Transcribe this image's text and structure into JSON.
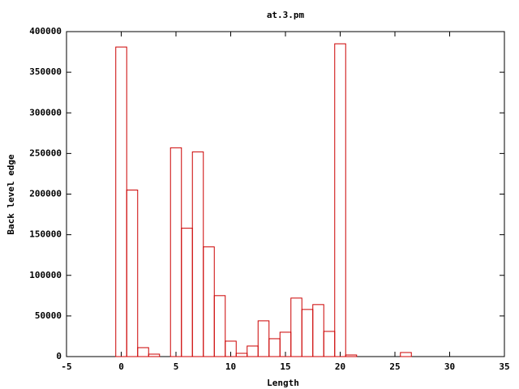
{
  "chart_data": {
    "type": "bar",
    "title": "at.3.pm",
    "xlabel": "Length",
    "ylabel": "Back level edge",
    "x": [
      0,
      1,
      2,
      3,
      5,
      6,
      7,
      8,
      9,
      10,
      11,
      12,
      13,
      14,
      15,
      16,
      17,
      18,
      19,
      20,
      21,
      26
    ],
    "values": [
      381000,
      205000,
      11000,
      3000,
      257000,
      158000,
      252000,
      135000,
      75000,
      19000,
      4000,
      13000,
      44000,
      22000,
      30000,
      72000,
      58000,
      64000,
      31000,
      385000,
      2000,
      5000
    ],
    "color": "#cc0000",
    "xlim": [
      -5,
      35
    ],
    "xticks": [
      -5,
      0,
      5,
      10,
      15,
      20,
      25,
      30,
      35
    ],
    "ylim": [
      0,
      400000
    ],
    "yticks": [
      0,
      50000,
      100000,
      150000,
      200000,
      250000,
      300000,
      350000,
      400000
    ]
  }
}
